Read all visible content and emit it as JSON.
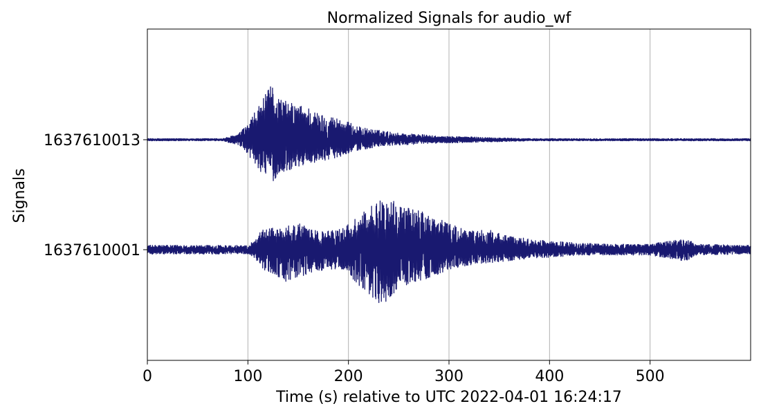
{
  "chart_data": {
    "type": "line",
    "title": "Normalized Signals for audio_wf",
    "xlabel": "Time (s) relative to UTC 2022-04-01 16:24:17",
    "ylabel": "Signals",
    "xlim": [
      0,
      600
    ],
    "x_ticks": [
      0,
      100,
      200,
      300,
      400,
      500
    ],
    "grid": {
      "x": true,
      "y": false
    },
    "line_color": "#191970",
    "series": [
      {
        "name": "1637610013",
        "offset": 1,
        "envelope": {
          "t": [
            0,
            75,
            90,
            100,
            110,
            118,
            125,
            130,
            140,
            150,
            160,
            170,
            180,
            190,
            200,
            210,
            220,
            235,
            250,
            270,
            290,
            310,
            340,
            380,
            420,
            500,
            600
          ],
          "amp_pos": [
            0.01,
            0.01,
            0.05,
            0.14,
            0.3,
            0.42,
            0.52,
            0.4,
            0.34,
            0.32,
            0.3,
            0.24,
            0.22,
            0.2,
            0.16,
            0.12,
            0.1,
            0.08,
            0.06,
            0.05,
            0.03,
            0.03,
            0.02,
            0.01,
            0.01,
            0.01,
            0.01
          ],
          "amp_neg": [
            0.01,
            0.01,
            0.05,
            0.14,
            0.26,
            0.35,
            0.38,
            0.34,
            0.28,
            0.25,
            0.22,
            0.2,
            0.18,
            0.16,
            0.12,
            0.1,
            0.08,
            0.06,
            0.05,
            0.04,
            0.03,
            0.03,
            0.02,
            0.01,
            0.01,
            0.01,
            0.01
          ]
        }
      },
      {
        "name": "1637610001",
        "offset": 0,
        "envelope": {
          "t": [
            0,
            100,
            105,
            115,
            125,
            140,
            150,
            165,
            180,
            195,
            210,
            225,
            235,
            245,
            255,
            270,
            285,
            300,
            320,
            340,
            360,
            380,
            400,
            430,
            460,
            500,
            533,
            537,
            545,
            600
          ],
          "amp_pos": [
            0.04,
            0.04,
            0.08,
            0.2,
            0.2,
            0.22,
            0.24,
            0.18,
            0.17,
            0.2,
            0.3,
            0.42,
            0.48,
            0.48,
            0.4,
            0.36,
            0.3,
            0.24,
            0.17,
            0.18,
            0.12,
            0.1,
            0.08,
            0.06,
            0.05,
            0.05,
            0.1,
            0.1,
            0.05,
            0.04
          ],
          "amp_neg": [
            0.04,
            0.04,
            0.06,
            0.18,
            0.22,
            0.3,
            0.26,
            0.2,
            0.18,
            0.18,
            0.32,
            0.46,
            0.52,
            0.4,
            0.34,
            0.3,
            0.24,
            0.18,
            0.14,
            0.12,
            0.1,
            0.08,
            0.07,
            0.05,
            0.05,
            0.05,
            0.1,
            0.1,
            0.05,
            0.04
          ]
        }
      }
    ]
  }
}
